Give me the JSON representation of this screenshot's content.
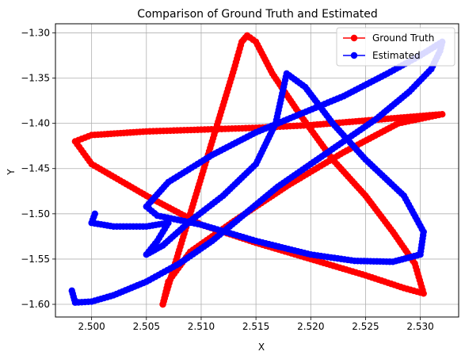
{
  "chart_data": {
    "type": "scatter",
    "title": "Comparison of Ground Truth and Estimated",
    "xlabel": "X",
    "ylabel": "Y",
    "xlim": [
      2.4967,
      2.5335
    ],
    "ylim": [
      -1.614,
      -1.29
    ],
    "xticks": [
      2.5,
      2.505,
      2.51,
      2.515,
      2.52,
      2.525,
      2.53
    ],
    "xtick_labels": [
      "2.500",
      "2.505",
      "2.510",
      "2.515",
      "2.520",
      "2.525",
      "2.530"
    ],
    "yticks": [
      -1.3,
      -1.35,
      -1.4,
      -1.45,
      -1.5,
      -1.55,
      -1.6
    ],
    "ytick_labels": [
      "−1.30",
      "−1.35",
      "−1.40",
      "−1.45",
      "−1.50",
      "−1.55",
      "−1.60"
    ],
    "grid": true,
    "legend_position": "top-right",
    "series": [
      {
        "name": "Ground Truth",
        "color": "#ff0000",
        "marker": "o",
        "points": [
          [
            2.5065,
            -1.6
          ],
          [
            2.507,
            -1.58
          ],
          [
            2.508,
            -1.54
          ],
          [
            2.509,
            -1.5
          ],
          [
            2.51,
            -1.46
          ],
          [
            2.511,
            -1.42
          ],
          [
            2.512,
            -1.38
          ],
          [
            2.513,
            -1.34
          ],
          [
            2.5137,
            -1.31
          ],
          [
            2.5142,
            -1.303
          ],
          [
            2.515,
            -1.31
          ],
          [
            2.5165,
            -1.345
          ],
          [
            2.519,
            -1.39
          ],
          [
            2.522,
            -1.44
          ],
          [
            2.525,
            -1.48
          ],
          [
            2.5275,
            -1.52
          ],
          [
            2.5295,
            -1.555
          ],
          [
            2.5303,
            -1.588
          ],
          [
            2.5285,
            -1.582
          ],
          [
            2.525,
            -1.568
          ],
          [
            2.52,
            -1.55
          ],
          [
            2.515,
            -1.532
          ],
          [
            2.51,
            -1.512
          ],
          [
            2.505,
            -1.48
          ],
          [
            2.5,
            -1.445
          ],
          [
            2.4985,
            -1.42
          ],
          [
            2.5,
            -1.413
          ],
          [
            2.505,
            -1.409
          ],
          [
            2.51,
            -1.407
          ],
          [
            2.515,
            -1.405
          ],
          [
            2.52,
            -1.402
          ],
          [
            2.525,
            -1.397
          ],
          [
            2.53,
            -1.392
          ],
          [
            2.532,
            -1.39
          ],
          [
            2.528,
            -1.4
          ],
          [
            2.523,
            -1.432
          ],
          [
            2.518,
            -1.468
          ],
          [
            2.513,
            -1.508
          ],
          [
            2.509,
            -1.542
          ],
          [
            2.507,
            -1.575
          ],
          [
            2.5065,
            -1.6
          ]
        ]
      },
      {
        "name": "Estimated",
        "color": "#0000ff",
        "marker": "o",
        "points": [
          [
            2.4982,
            -1.585
          ],
          [
            2.4985,
            -1.598
          ],
          [
            2.5,
            -1.597
          ],
          [
            2.502,
            -1.59
          ],
          [
            2.505,
            -1.575
          ],
          [
            2.508,
            -1.555
          ],
          [
            2.511,
            -1.53
          ],
          [
            2.514,
            -1.5
          ],
          [
            2.517,
            -1.47
          ],
          [
            2.52,
            -1.445
          ],
          [
            2.523,
            -1.42
          ],
          [
            2.526,
            -1.395
          ],
          [
            2.529,
            -1.365
          ],
          [
            2.531,
            -1.34
          ],
          [
            2.5318,
            -1.32
          ],
          [
            2.532,
            -1.31
          ],
          [
            2.53,
            -1.325
          ],
          [
            2.527,
            -1.345
          ],
          [
            2.523,
            -1.37
          ],
          [
            2.519,
            -1.39
          ],
          [
            2.515,
            -1.41
          ],
          [
            2.511,
            -1.435
          ],
          [
            2.507,
            -1.465
          ],
          [
            2.505,
            -1.492
          ],
          [
            2.506,
            -1.502
          ],
          [
            2.51,
            -1.512
          ],
          [
            2.515,
            -1.53
          ],
          [
            2.52,
            -1.545
          ],
          [
            2.524,
            -1.552
          ],
          [
            2.5275,
            -1.553
          ],
          [
            2.53,
            -1.545
          ],
          [
            2.5303,
            -1.52
          ],
          [
            2.5285,
            -1.48
          ],
          [
            2.525,
            -1.44
          ],
          [
            2.522,
            -1.4
          ],
          [
            2.5195,
            -1.36
          ],
          [
            2.5178,
            -1.345
          ],
          [
            2.5168,
            -1.4
          ],
          [
            2.515,
            -1.445
          ],
          [
            2.512,
            -1.48
          ],
          [
            2.509,
            -1.508
          ],
          [
            2.5065,
            -1.535
          ],
          [
            2.505,
            -1.545
          ],
          [
            2.506,
            -1.53
          ],
          [
            2.507,
            -1.51
          ],
          [
            2.505,
            -1.514
          ],
          [
            2.502,
            -1.514
          ],
          [
            2.5,
            -1.51
          ],
          [
            2.5003,
            -1.5
          ]
        ]
      }
    ]
  }
}
